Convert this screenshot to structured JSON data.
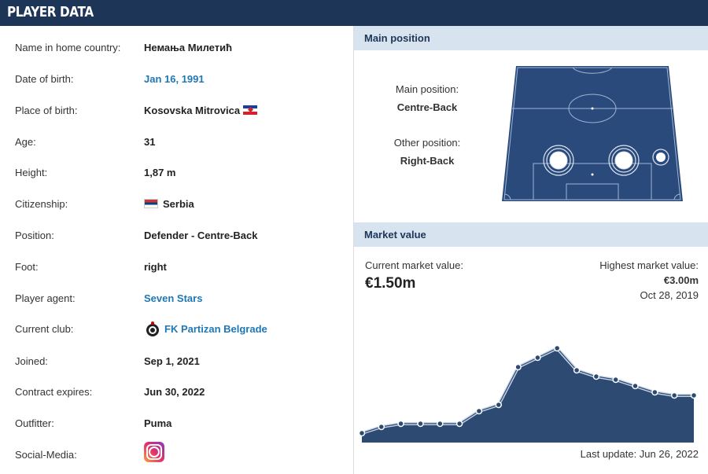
{
  "header": {
    "title": "PLAYER DATA"
  },
  "player": {
    "rows": [
      {
        "label": "Name in home country:",
        "value": "Немања Милетић"
      },
      {
        "label": "Date of birth:",
        "value": "Jan 16, 1991"
      },
      {
        "label": "Place of birth:",
        "value": "Kosovska Mitrovica"
      },
      {
        "label": "Age:",
        "value": "31"
      },
      {
        "label": "Height:",
        "value": "1,87 m"
      },
      {
        "label": "Citizenship:",
        "value": "Serbia"
      },
      {
        "label": "Position:",
        "value": "Defender - Centre-Back"
      },
      {
        "label": "Foot:",
        "value": "right"
      },
      {
        "label": "Player agent:",
        "value": "Seven Stars"
      },
      {
        "label": "Current club:",
        "value": "FK Partizan Belgrade"
      },
      {
        "label": "Joined:",
        "value": "Sep 1, 2021"
      },
      {
        "label": "Contract expires:",
        "value": "Jun 30, 2022"
      },
      {
        "label": "Outfitter:",
        "value": "Puma"
      },
      {
        "label": "Social-Media:",
        "value": ""
      }
    ]
  },
  "main_position": {
    "title": "Main position",
    "main_label": "Main position:",
    "main_value": "Centre-Back",
    "other_label": "Other position:",
    "other_value": "Right-Back"
  },
  "market_value": {
    "title": "Market value",
    "current_label": "Current market value:",
    "current_value": "€1.50m",
    "highest_label": "Highest market value:",
    "highest_value": "€3.00m",
    "highest_date": "Oct 28, 2019",
    "last_update": "Last update: Jun 26, 2022"
  },
  "colors": {
    "header_bg": "#1d3557",
    "section_bg": "#d7e4ef",
    "link": "#1f5fa0",
    "pitch": "#2b4a7c",
    "chart_fill": "#2d4a73"
  },
  "chart_data": {
    "type": "area",
    "values": [
      0.3,
      0.5,
      0.6,
      0.6,
      0.6,
      0.6,
      1.0,
      1.2,
      2.4,
      2.7,
      3.0,
      2.3,
      2.1,
      2.0,
      1.8,
      1.6,
      1.5,
      1.5
    ],
    "ylim": [
      0,
      3.5
    ],
    "title": "",
    "xlabel": "",
    "ylabel": ""
  }
}
